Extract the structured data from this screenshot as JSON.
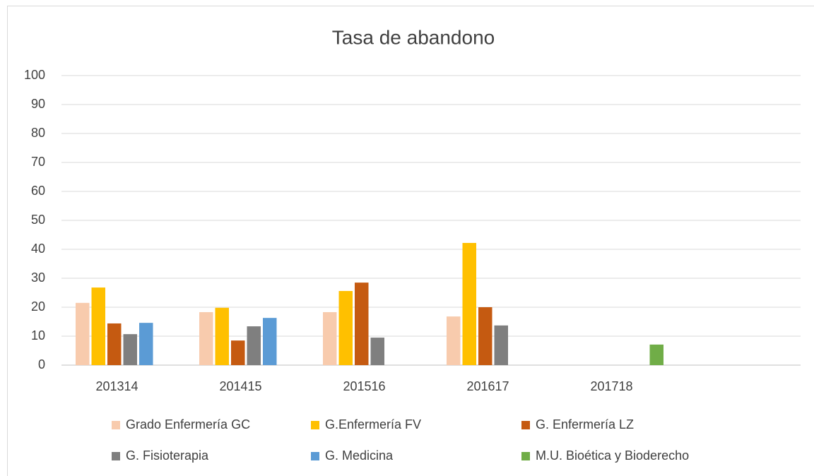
{
  "chart_data": {
    "type": "bar",
    "title": "Tasa de abandono",
    "categories": [
      "201314",
      "201415",
      "201516",
      "201617",
      "201718",
      null
    ],
    "series": [
      {
        "name": "Grado Enfermería GC",
        "color": "#f8cbad",
        "values": [
          21.5,
          18.3,
          18.3,
          16.8,
          null,
          null
        ]
      },
      {
        "name": "G.Enfermería FV",
        "color": "#ffc000",
        "values": [
          26.8,
          19.8,
          25.6,
          42.2,
          null,
          null
        ]
      },
      {
        "name": "G. Enfermería LZ",
        "color": "#c55a11",
        "values": [
          14.4,
          8.5,
          28.5,
          20,
          null,
          null
        ]
      },
      {
        "name": "G. Fisioterapia",
        "color": "#7f7f7f",
        "values": [
          10.7,
          13.4,
          9.5,
          13.7,
          null,
          null
        ]
      },
      {
        "name": "G. Medicina",
        "color": "#5b9bd5",
        "values": [
          14.6,
          16.3,
          null,
          null,
          null,
          null
        ]
      },
      {
        "name": "M.U. Bioética y Bioderecho",
        "color": "#70ad47",
        "values": [
          null,
          null,
          null,
          null,
          7.1,
          null
        ]
      }
    ],
    "ylim": [
      0,
      100
    ],
    "yticks": [
      0,
      10,
      20,
      30,
      40,
      50,
      60,
      70,
      80,
      90,
      100
    ],
    "grid": true,
    "legend": "bottom"
  }
}
